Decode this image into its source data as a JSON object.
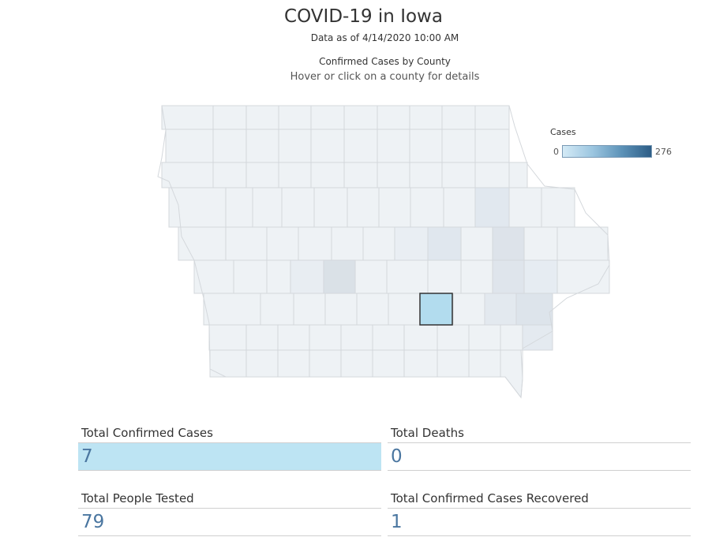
{
  "header": {
    "title": "COVID-19 in Iowa",
    "as_of": "Data as of 4/14/2020 10:00 AM",
    "subtitle": "Confirmed Cases by County",
    "hint": "Hover or click on a county for details"
  },
  "legend": {
    "title": "Cases",
    "min": "0",
    "max": "276",
    "color_low": "#d4eaf6",
    "color_high": "#2d5d86"
  },
  "map": {
    "base_color": "#eef2f5",
    "border_color": "#d4d8dc",
    "selected_color": "#b2dcee",
    "selected_border": "#333333"
  },
  "stats": {
    "total_confirmed_cases": {
      "label": "Total Confirmed Cases",
      "value": "7"
    },
    "total_deaths": {
      "label": "Total Deaths",
      "value": "0"
    },
    "total_people_tested": {
      "label": "Total People Tested",
      "value": "79"
    },
    "total_recovered": {
      "label": "Total Confirmed Cases Recovered",
      "value": "1"
    }
  }
}
